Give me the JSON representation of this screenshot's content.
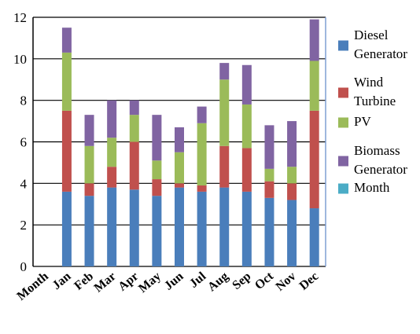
{
  "chart_data": {
    "type": "bar",
    "stacked": true,
    "title": "",
    "xlabel": "",
    "ylabel": "",
    "ylim": [
      0,
      12
    ],
    "yticks": [
      0,
      2,
      4,
      6,
      8,
      10,
      12
    ],
    "grid": "horizontal",
    "legend_position": "right",
    "categories": [
      "Month",
      "Jan",
      "Feb",
      "Mar",
      "Apr",
      "May",
      "Jun",
      "Jul",
      "Aug",
      "Sep",
      "Oct",
      "Nov",
      "Dec"
    ],
    "series": [
      {
        "name": "Diesel Generator",
        "legend_lines": [
          "Diesel",
          "Generator"
        ],
        "color": "#4a7ebb",
        "values": [
          0,
          3.6,
          3.4,
          3.8,
          3.7,
          3.4,
          3.8,
          3.6,
          3.8,
          3.6,
          3.3,
          3.2,
          2.8
        ]
      },
      {
        "name": "Wind Turbine",
        "legend_lines": [
          "Wind",
          "Turbine"
        ],
        "color": "#c0504d",
        "values": [
          0,
          3.9,
          0.6,
          1.0,
          2.3,
          0.8,
          0.2,
          0.3,
          2.0,
          2.1,
          0.8,
          0.8,
          4.7
        ]
      },
      {
        "name": "PV",
        "legend_lines": [
          "PV"
        ],
        "color": "#9bbb59",
        "values": [
          0,
          2.8,
          1.8,
          1.4,
          1.3,
          0.9,
          1.5,
          3.0,
          3.2,
          2.1,
          0.6,
          0.8,
          2.4
        ]
      },
      {
        "name": "Biomass Generator",
        "legend_lines": [
          "Biomass",
          "Generator"
        ],
        "color": "#8064a2",
        "values": [
          0,
          1.2,
          1.5,
          1.8,
          0.7,
          2.2,
          1.2,
          0.8,
          0.8,
          1.9,
          2.1,
          2.2,
          2.0
        ]
      },
      {
        "name": "Month",
        "legend_lines": [
          "Month"
        ],
        "color": "#4bacc6",
        "values": [
          0,
          0,
          0,
          0,
          0,
          0,
          0,
          0,
          0,
          0,
          0,
          0,
          0
        ]
      }
    ]
  }
}
